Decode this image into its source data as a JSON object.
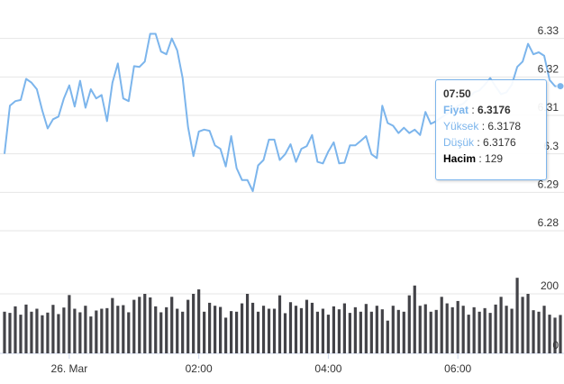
{
  "chart_data": [
    {
      "type": "line",
      "series": [
        {
          "color": "#7cb5ec",
          "values": [
            6.3,
            6.3125,
            6.3137,
            6.314,
            6.3195,
            6.3185,
            6.3168,
            6.3113,
            6.3066,
            6.309,
            6.3097,
            6.3144,
            6.3178,
            6.3123,
            6.319,
            6.312,
            6.3168,
            6.3144,
            6.3153,
            6.3085,
            6.3185,
            6.3235,
            6.3144,
            6.3137,
            6.3228,
            6.3226,
            6.324,
            6.3312,
            6.3312,
            6.3266,
            6.3259,
            6.33,
            6.3269,
            6.3197,
            6.307,
            6.2994,
            6.3058,
            6.3063,
            6.306,
            6.3022,
            6.3013,
            6.2967,
            6.3046,
            6.2963,
            6.2932,
            6.2932,
            6.2903,
            6.297,
            6.2984,
            6.3037,
            6.3037,
            6.2984,
            6.2999,
            6.3025,
            6.2979,
            6.3013,
            6.302,
            6.3049,
            6.2979,
            6.2975,
            6.3006,
            6.303,
            6.2975,
            6.2977,
            6.3022,
            6.3022,
            6.3034,
            6.3046,
            6.2999,
            6.2989,
            6.3125,
            6.308,
            6.3073,
            6.3054,
            6.3068,
            6.3054,
            6.3063,
            6.3049,
            6.3109,
            6.3078,
            6.3085,
            6.3095,
            6.3105,
            6.311,
            6.3125,
            6.313,
            6.3145,
            6.316,
            6.3165,
            6.318,
            6.3197,
            6.3175,
            6.3155,
            6.316,
            6.318,
            6.3226,
            6.324,
            6.3286,
            6.3259,
            6.3264,
            6.3255,
            6.3192,
            6.3176,
            6.3176
          ]
        }
      ],
      "ylim": [
        6.28,
        6.34
      ],
      "yticks": [
        6.28,
        6.29,
        6.3,
        6.31,
        6.32,
        6.33
      ],
      "grid": true
    },
    {
      "type": "bar",
      "color": "#434348",
      "values": [
        140,
        136,
        158,
        130,
        164,
        140,
        150,
        128,
        137,
        163,
        132,
        154,
        196,
        150,
        138,
        160,
        124,
        144,
        150,
        152,
        186,
        160,
        162,
        138,
        180,
        190,
        200,
        188,
        158,
        138,
        155,
        190,
        150,
        140,
        180,
        200,
        215,
        140,
        170,
        160,
        156,
        120,
        142,
        140,
        168,
        200,
        170,
        140,
        160,
        150,
        150,
        195,
        135,
        172,
        160,
        152,
        180,
        170,
        140,
        150,
        130,
        158,
        148,
        168,
        136,
        155,
        140,
        166,
        140,
        160,
        148,
        110,
        160,
        146,
        140,
        195,
        228,
        160,
        165,
        140,
        146,
        190,
        168,
        155,
        176,
        160,
        130,
        155,
        140,
        152,
        136,
        164,
        190,
        160,
        150,
        254,
        190,
        200,
        145,
        140,
        160,
        130,
        120,
        129
      ],
      "ylim": [
        0,
        400
      ],
      "yticks": [
        0,
        200
      ],
      "grid": true,
      "xlim": [
        0,
        103
      ],
      "xticks": [
        {
          "value": 12,
          "label": "26. Mar"
        },
        {
          "value": 36,
          "label": "02:00"
        },
        {
          "value": 60,
          "label": "04:00"
        },
        {
          "value": 84,
          "label": "06:00"
        }
      ]
    }
  ],
  "tooltip": {
    "time": "07:50",
    "rows": [
      {
        "label": "Fiyat",
        "value": "6.3176"
      },
      {
        "label": "Yüksek",
        "value": "6.3178"
      },
      {
        "label": "Düşük",
        "value": "6.3176"
      },
      {
        "label": "Hacim",
        "value": "129"
      }
    ]
  }
}
